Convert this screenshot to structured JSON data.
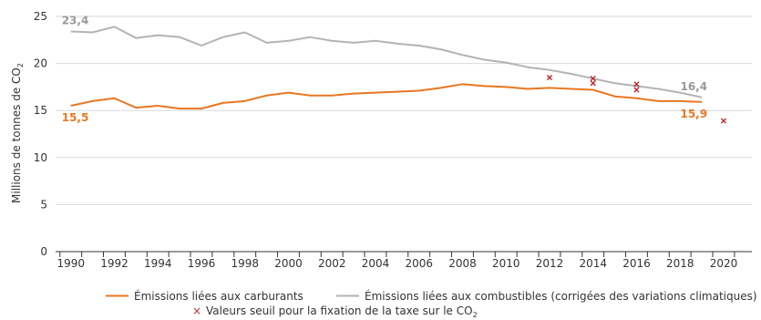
{
  "chart_data": {
    "type": "line",
    "ylabel": "Millions de tonnes de CO",
    "ylabel_subscript": "2",
    "ylim": [
      0,
      25
    ],
    "xlim": [
      1989.3,
      2021.3
    ],
    "y_ticks": [
      0,
      5,
      10,
      15,
      20,
      25
    ],
    "x_tick_labels": [
      "1990",
      "1992",
      "1994",
      "1996",
      "1998",
      "2000",
      "2002",
      "2004",
      "2006",
      "2008",
      "2010",
      "2012",
      "2014",
      "2016",
      "2018",
      "2020"
    ],
    "grid": "horizontal",
    "legend_position": "bottom",
    "x": [
      1990,
      1991,
      1992,
      1993,
      1994,
      1995,
      1996,
      1997,
      1998,
      1999,
      2000,
      2001,
      2002,
      2003,
      2004,
      2005,
      2006,
      2007,
      2008,
      2009,
      2010,
      2011,
      2012,
      2013,
      2014,
      2015,
      2016,
      2017,
      2018,
      2019
    ],
    "series": [
      {
        "name": "Émissions liées aux combustibles (corrigées des variations climatiques)",
        "color": "#b3b3b3",
        "values": [
          23.4,
          23.3,
          23.9,
          22.7,
          23.0,
          22.8,
          21.9,
          22.8,
          23.3,
          22.2,
          22.4,
          22.8,
          22.4,
          22.2,
          22.4,
          22.1,
          21.9,
          21.5,
          20.9,
          20.4,
          20.1,
          19.6,
          19.3,
          18.9,
          18.4,
          17.9,
          17.6,
          17.3,
          16.9,
          16.4
        ],
        "first_label": "23,4",
        "last_label": "16,4",
        "label_color": "#999999"
      },
      {
        "name": "Émissions liées aux carburants",
        "color": "#e87722",
        "values": [
          15.5,
          16.0,
          16.3,
          15.3,
          15.5,
          15.2,
          15.2,
          15.8,
          16.0,
          16.6,
          16.9,
          16.6,
          16.6,
          16.8,
          16.9,
          17.0,
          17.1,
          17.4,
          17.8,
          17.6,
          17.5,
          17.3,
          17.4,
          17.3,
          17.2,
          16.5,
          16.3,
          16.0,
          16.0,
          15.9
        ],
        "first_label": "15,5",
        "last_label": "15,9",
        "label_color": "#e87722"
      }
    ],
    "markers": {
      "name": "Valeurs seuil pour la fixation de la taxe sur le CO",
      "name_subscript": "2",
      "color": "#c0282d",
      "symbol": "×",
      "points": [
        {
          "x": 2012,
          "y": 18.5
        },
        {
          "x": 2014,
          "y": 18.4
        },
        {
          "x": 2014,
          "y": 17.9
        },
        {
          "x": 2016,
          "y": 17.8
        },
        {
          "x": 2016,
          "y": 17.2
        },
        {
          "x": 2020,
          "y": 13.9
        }
      ]
    }
  }
}
